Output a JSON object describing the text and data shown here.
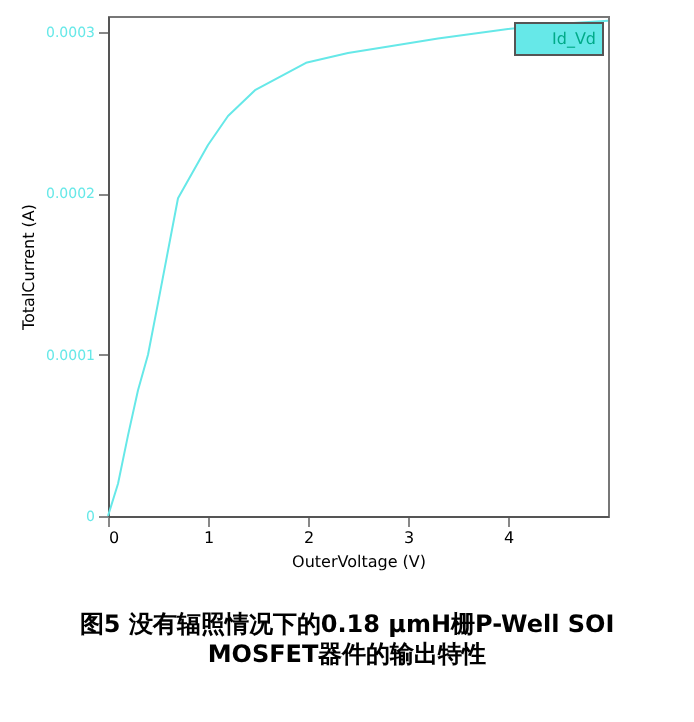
{
  "chart_data": {
    "type": "line",
    "title": "图5 没有辐照情况下的0.18 μmH栅P-Well SOI MOSFET器件的输出特性",
    "xlabel": "OuterVoltage (V)",
    "ylabel": "TotalCurrent (A)",
    "x": [
      0,
      0.1,
      0.2,
      0.3,
      0.4,
      0.5,
      0.7,
      1.0,
      1.2,
      1.47,
      1.98,
      2.4,
      2.79,
      3.3,
      4.0,
      4.5,
      5.0
    ],
    "series": [
      {
        "name": "Id_Vd",
        "color": "#66e8e8",
        "values": [
          0,
          2e-05,
          5e-05,
          7.8e-05,
          0.0001,
          0.000132,
          0.000197,
          0.00023,
          0.000248,
          0.000264,
          0.000281,
          0.000287,
          0.000291,
          0.000296,
          0.000302,
          0.000305,
          0.000307
        ]
      }
    ],
    "xlim": [
      0,
      5
    ],
    "xticks": [
      0,
      1,
      2,
      3,
      4
    ],
    "ylim": [
      0,
      0.00031
    ],
    "yticks": [
      0,
      0.0001,
      0.0002,
      0.0003
    ],
    "grid": false,
    "legend": "top right",
    "marker": "none",
    "line_style": "solid"
  }
}
